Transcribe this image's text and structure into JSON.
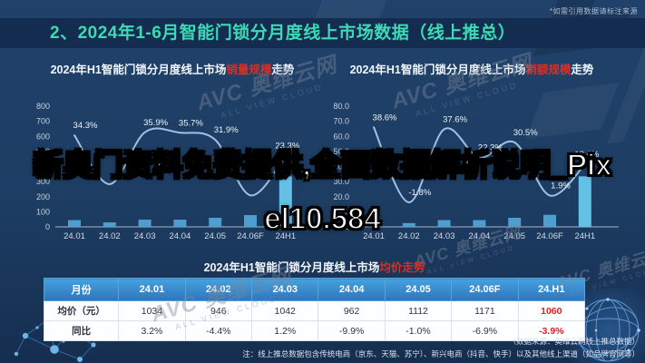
{
  "page": {
    "citation_note": "*如需引用数据请标注来源",
    "title": "2、2024年1-6月智能门锁分月度线上市场数据（线上推总）"
  },
  "overlay_text": "新奥门资料免费提供,全面数据解析说明_Pixel10.584",
  "watermark": {
    "brand": "AVC 奥维云网",
    "subtitle": "ALL VIEW CLOUD"
  },
  "chart_data": [
    {
      "type": "bar+line",
      "title_prefix": "2024年H1智能门锁分月度线上市场",
      "title_highlight": "销量规模",
      "title_suffix": "走势",
      "categories": [
        "24.01",
        "24.02",
        "24.03",
        "24.04",
        "24.05",
        "24.06F",
        "24H1"
      ],
      "bars": {
        "name": "销量规模",
        "values": [
          45,
          30,
          48,
          48,
          60,
          78,
          335
        ],
        "note": "bar values estimated from pixel heights, axis 0-800"
      },
      "line": {
        "name": "同比增速",
        "values": [
          34.3,
          8,
          35.9,
          35.7,
          31.9,
          2,
          23.3
        ],
        "labels": [
          "34.3%",
          "",
          "35.9%",
          "35.7%",
          "31.9%",
          "",
          "23.3%"
        ],
        "note": "24.02 and 24.06F labels occluded by overlay text; values estimated"
      },
      "ylim": [
        0,
        800
      ],
      "yticks": [
        "800",
        "700",
        "600",
        "500",
        "400",
        "300",
        "200",
        "100",
        "0"
      ],
      "grid": false,
      "legend": "none"
    },
    {
      "type": "bar+line",
      "title_prefix": "2024年H1智能门锁分月度线上市场",
      "title_highlight": "销额规模",
      "title_suffix": "走势",
      "categories": [
        "24.01",
        "24.02",
        "24.03",
        "24.04",
        "24.05",
        "24.06F",
        "24H1"
      ],
      "bars": {
        "name": "销额规模",
        "values": [
          4,
          2.5,
          4.5,
          4.5,
          6,
          8,
          33.5
        ],
        "note": "bar values estimated from pixel heights, axis 0-80"
      },
      "line": {
        "name": "同比增速",
        "values": [
          38.6,
          -1.8,
          37.6,
          22.3,
          30.5,
          1.9,
          18.6
        ],
        "labels": [
          "38.6%",
          "-1.8%",
          "37.6%",
          "22.3%",
          "30.5%",
          "1.9%",
          "18.6%"
        ]
      },
      "ylim": [
        0,
        80
      ],
      "yticks": [
        "80.0",
        "70.0",
        "60.0",
        "50.0",
        "40.0",
        "30.0",
        "20.0",
        "10.0",
        "0.0"
      ],
      "grid": false,
      "legend": "none"
    },
    {
      "type": "table",
      "title_prefix": "2024年H1智能门锁分月度线上市场",
      "title_highlight": "均价走势",
      "title_suffix": "",
      "columns": [
        "月份",
        "24.01",
        "24.02",
        "24.03",
        "24.04",
        "24.05",
        "24.06F",
        "24.H1"
      ],
      "rows": [
        {
          "label": "均价（元）",
          "values": [
            "1034",
            "946",
            "1042",
            "962",
            "1112",
            "1171",
            "1060"
          ]
        },
        {
          "label": "同比",
          "values": [
            "3.2%",
            "-4.4%",
            "1.2%",
            "-9.9%",
            "-1.0%",
            "-6.9%",
            "-3.9%"
          ]
        }
      ],
      "highlight_last_column": true
    }
  ],
  "footnotes": {
    "source": "（数据来源：奥维云网线上推总数据）",
    "note": "注：线上推总数据包含传统电商（京东、天猫、苏宁）、新兴电商（抖音、快手）以及其他线上渠道（如品牌官网等）"
  },
  "colors": {
    "background": "#1d3d63",
    "header_band": "#142c4f",
    "title_teal": "#3ed9b5",
    "highlight_red": "#d93025",
    "bar": "#4f9ecf",
    "bar_total": "#63c1e5",
    "line": "#a9c9ea",
    "axis_text": "#c5d1e0",
    "table_header_blue": "#3b8fd0",
    "table_red": "#e01f1f"
  }
}
